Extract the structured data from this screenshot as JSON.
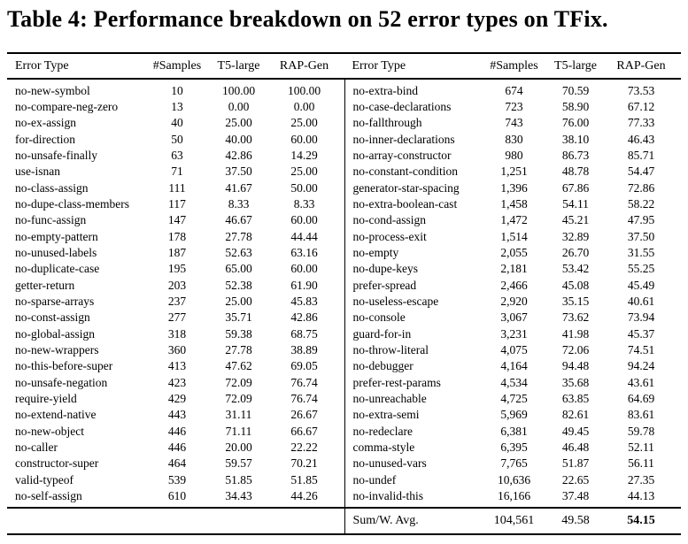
{
  "title": "Table 4: Performance breakdown on 52 error types on TFix.",
  "table": {
    "headers": [
      "Error Type",
      "#Samples",
      "T5-large",
      "RAP-Gen"
    ],
    "left_rows": [
      [
        "no-new-symbol",
        "10",
        "100.00",
        "100.00"
      ],
      [
        "no-compare-neg-zero",
        "13",
        "0.00",
        "0.00"
      ],
      [
        "no-ex-assign",
        "40",
        "25.00",
        "25.00"
      ],
      [
        "for-direction",
        "50",
        "40.00",
        "60.00"
      ],
      [
        "no-unsafe-finally",
        "63",
        "42.86",
        "14.29"
      ],
      [
        "use-isnan",
        "71",
        "37.50",
        "25.00"
      ],
      [
        "no-class-assign",
        "111",
        "41.67",
        "50.00"
      ],
      [
        "no-dupe-class-members",
        "117",
        "8.33",
        "8.33"
      ],
      [
        "no-func-assign",
        "147",
        "46.67",
        "60.00"
      ],
      [
        "no-empty-pattern",
        "178",
        "27.78",
        "44.44"
      ],
      [
        "no-unused-labels",
        "187",
        "52.63",
        "63.16"
      ],
      [
        "no-duplicate-case",
        "195",
        "65.00",
        "60.00"
      ],
      [
        "getter-return",
        "203",
        "52.38",
        "61.90"
      ],
      [
        "no-sparse-arrays",
        "237",
        "25.00",
        "45.83"
      ],
      [
        "no-const-assign",
        "277",
        "35.71",
        "42.86"
      ],
      [
        "no-global-assign",
        "318",
        "59.38",
        "68.75"
      ],
      [
        "no-new-wrappers",
        "360",
        "27.78",
        "38.89"
      ],
      [
        "no-this-before-super",
        "413",
        "47.62",
        "69.05"
      ],
      [
        "no-unsafe-negation",
        "423",
        "72.09",
        "76.74"
      ],
      [
        "require-yield",
        "429",
        "72.09",
        "76.74"
      ],
      [
        "no-extend-native",
        "443",
        "31.11",
        "26.67"
      ],
      [
        "no-new-object",
        "446",
        "71.11",
        "66.67"
      ],
      [
        "no-caller",
        "446",
        "20.00",
        "22.22"
      ],
      [
        "constructor-super",
        "464",
        "59.57",
        "70.21"
      ],
      [
        "valid-typeof",
        "539",
        "51.85",
        "51.85"
      ],
      [
        "no-self-assign",
        "610",
        "34.43",
        "44.26"
      ]
    ],
    "right_rows": [
      [
        "no-extra-bind",
        "674",
        "70.59",
        "73.53"
      ],
      [
        "no-case-declarations",
        "723",
        "58.90",
        "67.12"
      ],
      [
        "no-fallthrough",
        "743",
        "76.00",
        "77.33"
      ],
      [
        "no-inner-declarations",
        "830",
        "38.10",
        "46.43"
      ],
      [
        "no-array-constructor",
        "980",
        "86.73",
        "85.71"
      ],
      [
        "no-constant-condition",
        "1,251",
        "48.78",
        "54.47"
      ],
      [
        "generator-star-spacing",
        "1,396",
        "67.86",
        "72.86"
      ],
      [
        "no-extra-boolean-cast",
        "1,458",
        "54.11",
        "58.22"
      ],
      [
        "no-cond-assign",
        "1,472",
        "45.21",
        "47.95"
      ],
      [
        "no-process-exit",
        "1,514",
        "32.89",
        "37.50"
      ],
      [
        "no-empty",
        "2,055",
        "26.70",
        "31.55"
      ],
      [
        "no-dupe-keys",
        "2,181",
        "53.42",
        "55.25"
      ],
      [
        "prefer-spread",
        "2,466",
        "45.08",
        "45.49"
      ],
      [
        "no-useless-escape",
        "2,920",
        "35.15",
        "40.61"
      ],
      [
        "no-console",
        "3,067",
        "73.62",
        "73.94"
      ],
      [
        "guard-for-in",
        "3,231",
        "41.98",
        "45.37"
      ],
      [
        "no-throw-literal",
        "4,075",
        "72.06",
        "74.51"
      ],
      [
        "no-debugger",
        "4,164",
        "94.48",
        "94.24"
      ],
      [
        "prefer-rest-params",
        "4,534",
        "35.68",
        "43.61"
      ],
      [
        "no-unreachable",
        "4,725",
        "63.85",
        "64.69"
      ],
      [
        "no-extra-semi",
        "5,969",
        "82.61",
        "83.61"
      ],
      [
        "no-redeclare",
        "6,381",
        "49.45",
        "59.78"
      ],
      [
        "comma-style",
        "6,395",
        "46.48",
        "52.11"
      ],
      [
        "no-unused-vars",
        "7,765",
        "51.87",
        "56.11"
      ],
      [
        "no-undef",
        "10,636",
        "22.65",
        "27.35"
      ],
      [
        "no-invalid-this",
        "16,166",
        "37.48",
        "44.13"
      ]
    ],
    "footer": {
      "label": "Sum/W. Avg.",
      "samples": "104,561",
      "t5_large": "49.58",
      "rap_gen": "54.15"
    }
  }
}
